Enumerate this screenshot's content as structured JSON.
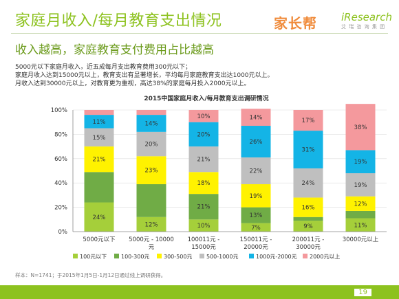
{
  "page": {
    "title": "家庭月收入/每月教育支出情况",
    "subtitle": "收入越高，家庭教育支付费用占比越高",
    "desc": [
      "5000元以下家庭月收入，近五成每月支出教育费用300元以下；",
      "家庭月收入达到15000元以上，教育支出有显著增长，平均每月家庭教育支出达1000元以上。",
      "月收入达到30000元以上，对教育更为重视，高达38%的家庭每月投入2000元以上。"
    ],
    "footnote": "样本：N=1741；于2015年1月5日-1月12日通过线上调研获得。",
    "page_number": "19",
    "logo_left": "家长帮",
    "logo_right": "iResearch",
    "logo_right_sub": "艾 瑞 咨 询 集 团"
  },
  "chart_data": {
    "type": "bar",
    "stacked": true,
    "title": "2015中国家庭月收入/每月教育支出调研情况",
    "categories": [
      "5000元以下",
      "5000元 - 10000元",
      "100011元 - 15000元",
      "150011元 - 20000元",
      "200011元 - 30000元",
      "30000元以上"
    ],
    "category_lines": [
      [
        "5000元以下"
      ],
      [
        "5000元 - 10000",
        "元"
      ],
      [
        "100011元 -",
        "15000元"
      ],
      [
        "150011元 -",
        "20000元"
      ],
      [
        "200011元 -",
        "30000元"
      ],
      [
        "30000元以上"
      ]
    ],
    "y_ticks": [
      "0%",
      "20%",
      "40%",
      "60%",
      "80%",
      "100%"
    ],
    "ylim": [
      0,
      100
    ],
    "legend_position": "bottom",
    "series": [
      {
        "name": "100元以下",
        "color": "#a5cf3a",
        "values": [
          24,
          12,
          10,
          7,
          9,
          11
        ]
      },
      {
        "name": "100-300元",
        "color": "#70ac46",
        "values": [
          25,
          27,
          21,
          13,
          3,
          6
        ]
      },
      {
        "name": "300-500元",
        "color": "#fff200",
        "values": [
          21,
          23,
          18,
          19,
          16,
          12
        ]
      },
      {
        "name": "500-1000元",
        "color": "#bfbfbf",
        "values": [
          15,
          20,
          21,
          22,
          24,
          19
        ]
      },
      {
        "name": "1000元-2000元",
        "color": "#14b4e6",
        "values": [
          11,
          14,
          20,
          26,
          31,
          19
        ]
      },
      {
        "name": "2000元以上",
        "color": "#f4999d",
        "values": [
          4,
          4,
          10,
          14,
          17,
          38
        ]
      }
    ],
    "hidden_labels": [
      [
        1,
        5
      ],
      [
        1,
        5
      ],
      [],
      [],
      [
        1
      ],
      [
        1
      ]
    ]
  }
}
